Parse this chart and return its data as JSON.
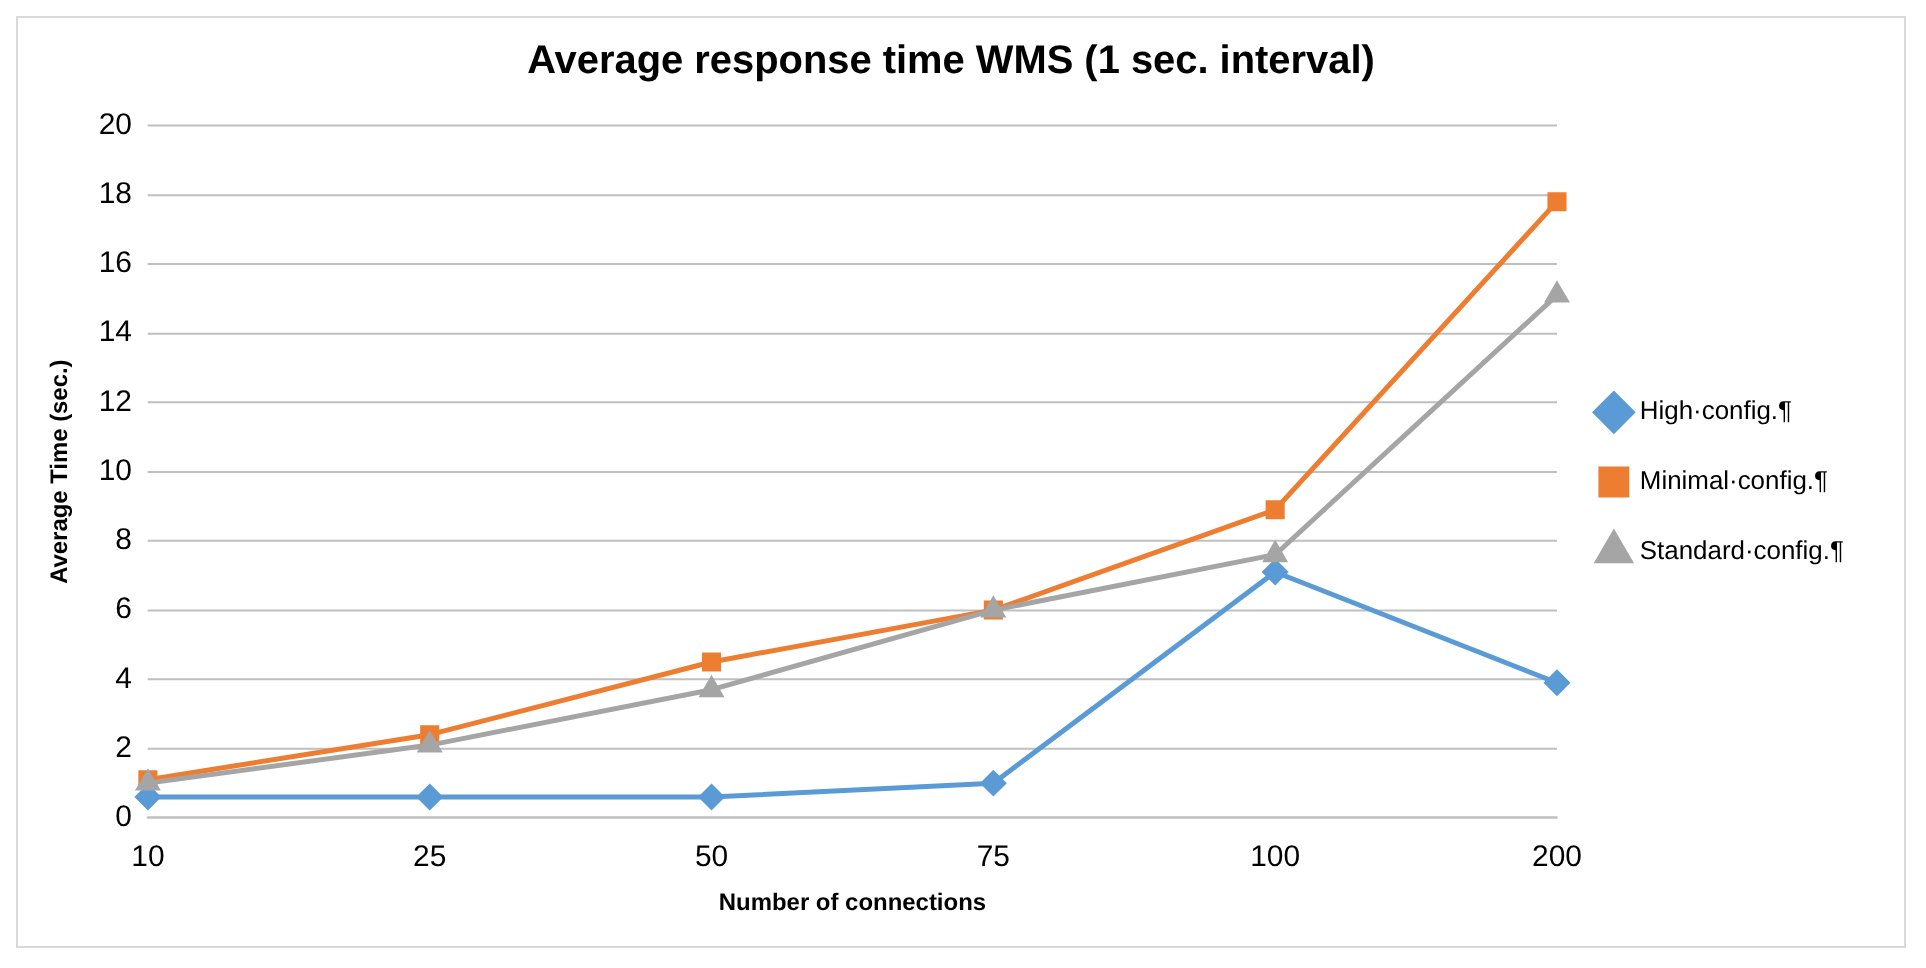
{
  "chart_data": {
    "type": "line",
    "title": "Average response time WMS (1 sec. interval)",
    "xlabel": "Number of connections",
    "ylabel": "Average Time (sec.)",
    "categories": [
      "10",
      "25",
      "50",
      "75",
      "100",
      "200"
    ],
    "series": [
      {
        "name": "High·config.¶",
        "color": "#5b9bd5",
        "marker": "diamond",
        "values": [
          0.6,
          0.6,
          0.6,
          1.0,
          7.1,
          3.9
        ]
      },
      {
        "name": "Minimal·config.¶",
        "color": "#ed7d31",
        "marker": "square",
        "values": [
          1.1,
          2.4,
          4.5,
          6.0,
          8.9,
          17.8
        ]
      },
      {
        "name": "Standard·config.¶",
        "color": "#a5a5a5",
        "marker": "triangle",
        "values": [
          1.0,
          2.1,
          3.7,
          6.0,
          7.6,
          15.1
        ]
      }
    ],
    "ylim": [
      0,
      20
    ],
    "yticks": [
      0,
      2,
      4,
      6,
      8,
      10,
      12,
      14,
      16,
      18,
      20
    ],
    "grid": "y",
    "legend": "right",
    "line_style": "solid"
  }
}
